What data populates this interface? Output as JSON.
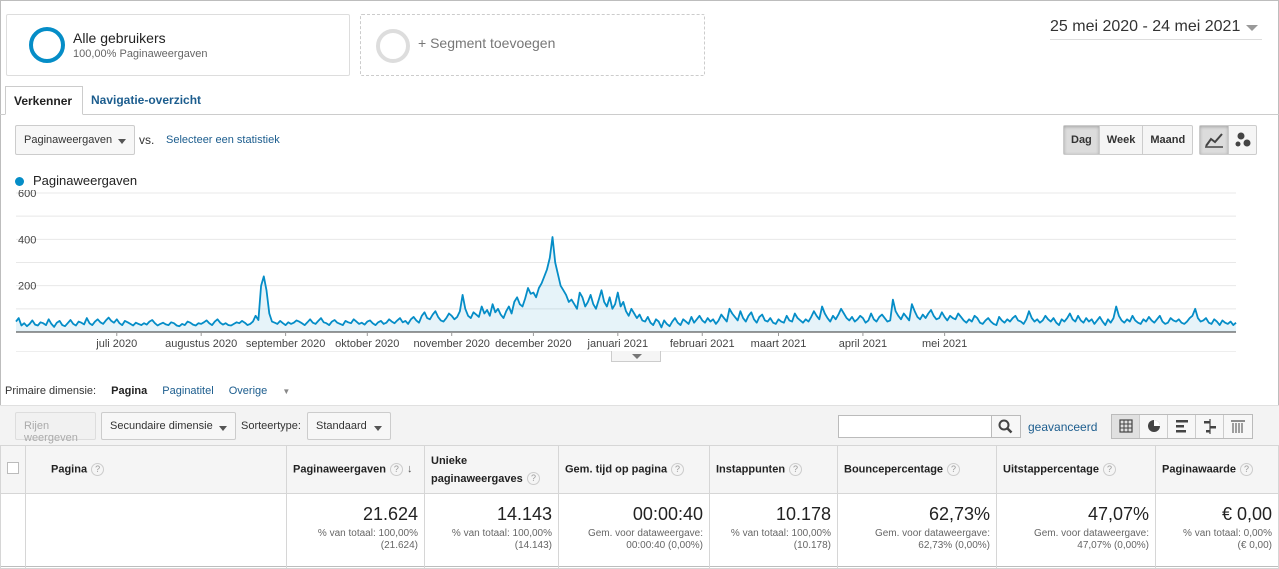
{
  "segment": {
    "title": "Alle gebruikers",
    "subtitle": "100,00% Paginaweergaven",
    "add_label": "+ Segment toevoegen"
  },
  "date_range": "25 mei 2020 - 24 mei 2021",
  "tabs": {
    "explorer": "Verkenner",
    "navigation": "Navigatie-overzicht"
  },
  "controls": {
    "metric": "Paginaweergaven",
    "vs": "vs.",
    "select_stat": "Selecteer een statistiek",
    "granularity": [
      "Dag",
      "Week",
      "Maand"
    ],
    "granularity_active": "Dag"
  },
  "chart_data": {
    "type": "line",
    "series": [
      {
        "name": "Paginaweergaven",
        "color": "#058dc7",
        "values": [
          45,
          60,
          28,
          38,
          25,
          35,
          50,
          32,
          28,
          42,
          38,
          30,
          55,
          35,
          22,
          40,
          48,
          30,
          25,
          38,
          52,
          35,
          28,
          45,
          40,
          33,
          60,
          38,
          30,
          45,
          55,
          42,
          35,
          50,
          62,
          48,
          40,
          55,
          38,
          30,
          48,
          42,
          35,
          28,
          40,
          35,
          30,
          38,
          32,
          45,
          52,
          38,
          28,
          35,
          40,
          33,
          30,
          42,
          38,
          28,
          25,
          35,
          30,
          45,
          40,
          32,
          28,
          38,
          35,
          42,
          50,
          38,
          30,
          45,
          55,
          40,
          32,
          38,
          30,
          28,
          35,
          42,
          38,
          48,
          40,
          30,
          35,
          45,
          70,
          52,
          200,
          240,
          180,
          80,
          45,
          40,
          35,
          48,
          38,
          30,
          42,
          35,
          40,
          50,
          45,
          38,
          30,
          42,
          55,
          40,
          35,
          48,
          60,
          42,
          38,
          30,
          45,
          52,
          40,
          35,
          30,
          48,
          42,
          38,
          55,
          45,
          35,
          40,
          32,
          45,
          50,
          38,
          30,
          42,
          48,
          35,
          40,
          55,
          45,
          38,
          50,
          60,
          42,
          48,
          35,
          55,
          65,
          50,
          40,
          70,
          85,
          60,
          55,
          75,
          90,
          65,
          50,
          45,
          60,
          80,
          70,
          55,
          65,
          90,
          160,
          100,
          70,
          60,
          85,
          75,
          65,
          110,
          80,
          95,
          70,
          120,
          85,
          100,
          75,
          60,
          90,
          110,
          80,
          130,
          150,
          120,
          110,
          145,
          190,
          165,
          170,
          150,
          190,
          210,
          240,
          270,
          320,
          410,
          300,
          250,
          200,
          180,
          160,
          130,
          140,
          120,
          100,
          170,
          150,
          110,
          130,
          160,
          120,
          100,
          140,
          180,
          130,
          110,
          150,
          100,
          120,
          170,
          110,
          130,
          90,
          70,
          100,
          80,
          60,
          75,
          50,
          45,
          65,
          40,
          30,
          55,
          45,
          20,
          50,
          35,
          25,
          45,
          60,
          40,
          30,
          55,
          45,
          35,
          65,
          40,
          55,
          70,
          50,
          40,
          60,
          45,
          55,
          35,
          50,
          75,
          60,
          45,
          100,
          80,
          65,
          50,
          90,
          60,
          45,
          70,
          85,
          55,
          40,
          65,
          75,
          50,
          45,
          60,
          40,
          35,
          55,
          45,
          40,
          70,
          50,
          45,
          80,
          60,
          50,
          40,
          55,
          45,
          65,
          90,
          70,
          55,
          110,
          80,
          60,
          45,
          70,
          55,
          75,
          100,
          80,
          60,
          50,
          65,
          45,
          55,
          70,
          60,
          40,
          50,
          80,
          55,
          45,
          65,
          75,
          60,
          45,
          50,
          140,
          90,
          70,
          55,
          80,
          65,
          50,
          120,
          90,
          65,
          55,
          75,
          60,
          80,
          95,
          70,
          55,
          60,
          85,
          65,
          50,
          70,
          60,
          55,
          80,
          65,
          50,
          40,
          55,
          45,
          70,
          60,
          40,
          35,
          50,
          60,
          45,
          35,
          30,
          65,
          50,
          40,
          55,
          45,
          60,
          70,
          50,
          45,
          35,
          55,
          90,
          60,
          45,
          55,
          40,
          50,
          70,
          55,
          45,
          60,
          40,
          30,
          55,
          45,
          60,
          80,
          55,
          45,
          70,
          50,
          40,
          60,
          45,
          55,
          35,
          50,
          65,
          45,
          30,
          55,
          40,
          60,
          110,
          70,
          50,
          40,
          55,
          45,
          70,
          50,
          40,
          35,
          55,
          45,
          65,
          50,
          40,
          55,
          70,
          45,
          35,
          40,
          60,
          50,
          45,
          55,
          40,
          35,
          45,
          60,
          70,
          100,
          60,
          45,
          50,
          60,
          40,
          35,
          55,
          45,
          30,
          50,
          40,
          35,
          45,
          30,
          40
        ]
      }
    ],
    "ylim": [
      0,
      600
    ],
    "y_ticks": [
      "600",
      "400",
      "200"
    ],
    "x_ticks": [
      "juli 2020",
      "augustus 2020",
      "september 2020",
      "oktober 2020",
      "november 2020",
      "december 2020",
      "januari 2021",
      "februari 2021",
      "maart 2021",
      "april 2021",
      "mei 2021"
    ],
    "grid": true,
    "area": true
  },
  "dimensions": {
    "label": "Primaire dimensie:",
    "items": [
      "Pagina",
      "Paginatitel",
      "Overige"
    ],
    "active": "Pagina"
  },
  "toolbar": {
    "rows": "Rijen weergeven",
    "secondary": "Secundaire dimensie",
    "sort_label": "Sorteertype:",
    "sort_value": "Standaard",
    "advanced": "geavanceerd"
  },
  "table": {
    "headers": [
      "Pagina",
      "Paginaweergaven",
      "Unieke paginaweergaves",
      "Gem. tijd op pagina",
      "Instappunten",
      "Bouncepercentage",
      "Uitstappercentage",
      "Paginawaarde"
    ],
    "totals": [
      {
        "value": "21.624",
        "note1": "% van totaal: 100,00%",
        "note2": "(21.624)"
      },
      {
        "value": "14.143",
        "note1": "% van totaal: 100,00%",
        "note2": "(14.143)"
      },
      {
        "value": "00:00:40",
        "note1": "Gem. voor dataweergave:",
        "note2": "00:00:40 (0,00%)"
      },
      {
        "value": "10.178",
        "note1": "% van totaal: 100,00%",
        "note2": "(10.178)"
      },
      {
        "value": "62,73%",
        "note1": "Gem. voor dataweergave:",
        "note2": "62,73% (0,00%)"
      },
      {
        "value": "47,07%",
        "note1": "Gem. voor dataweergave:",
        "note2": "47,07% (0,00%)"
      },
      {
        "value": "€ 0,00",
        "note1": "% van totaal: 0,00%",
        "note2": "(€ 0,00)"
      }
    ]
  }
}
